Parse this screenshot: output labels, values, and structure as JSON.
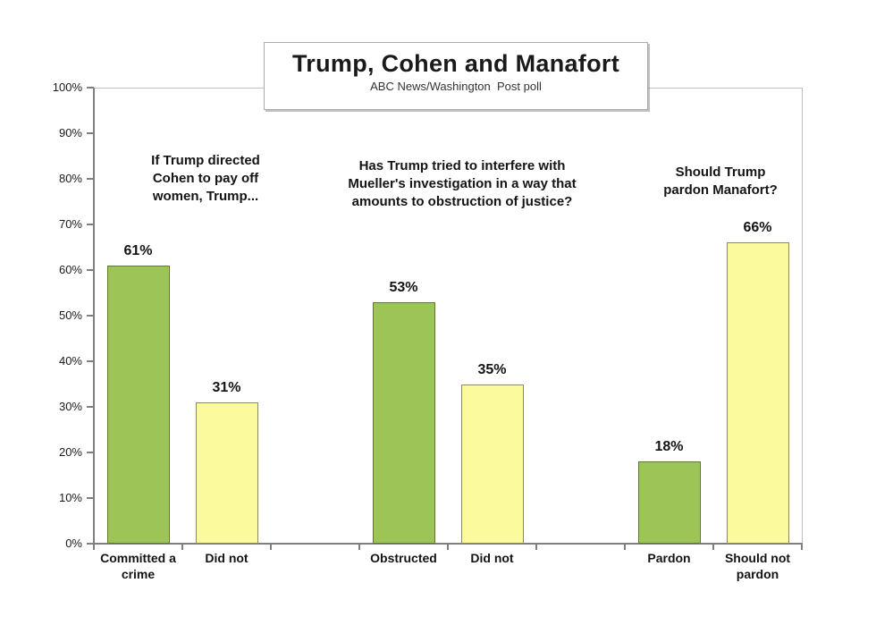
{
  "title_box": {
    "title": "Trump, Cohen and Manafort",
    "subtitle": "ABC News/Washington  Post poll"
  },
  "chart_data": {
    "type": "bar",
    "title": "Trump, Cohen and Manafort",
    "subtitle": "ABC News/Washington Post poll",
    "xlabel": "",
    "ylabel": "",
    "ylim": [
      0,
      100
    ],
    "ytick_step": 10,
    "ytick_suffix": "%",
    "grid": false,
    "legend": "none",
    "palette": {
      "green_fill": "#9CC456",
      "green_border": "#61782F",
      "yellow_fill": "#FBFB9E",
      "yellow_border": "#8B8B5C",
      "axis": "#7F7F7F",
      "plot_border": "#BFBFBF",
      "text": "#141414"
    },
    "groups": [
      {
        "question": "If Trump directed\nCohen to pay off\nwomen, Trump...",
        "bars": [
          {
            "label": "Committed a crime",
            "value": 61,
            "color": "green"
          },
          {
            "label": "Did not",
            "value": 31,
            "color": "yellow"
          }
        ]
      },
      {
        "question": "Has Trump tried to interfere with\nMueller's investigation in a way that\namounts to obstruction of justice?",
        "bars": [
          {
            "label": "Obstructed",
            "value": 53,
            "color": "green"
          },
          {
            "label": "Did not",
            "value": 35,
            "color": "yellow"
          }
        ]
      },
      {
        "question": "Should Trump\npardon Manafort?",
        "bars": [
          {
            "label": "Pardon",
            "value": 18,
            "color": "green"
          },
          {
            "label": "Should not pardon",
            "value": 66,
            "color": "yellow"
          }
        ]
      }
    ]
  }
}
